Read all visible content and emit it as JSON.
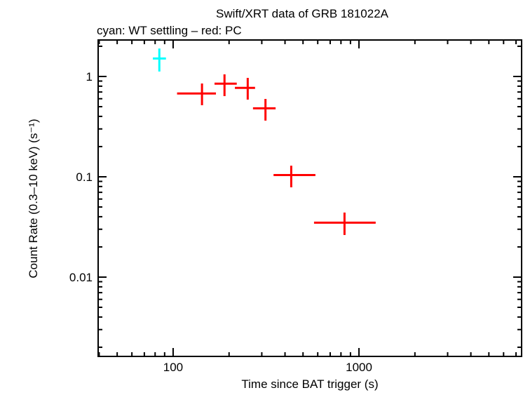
{
  "chart_data": {
    "type": "scatter",
    "title": "Swift/XRT data of GRB 181022A",
    "subtitle": "cyan: WT settling – red: PC",
    "xlabel": "Time since BAT trigger (s)",
    "ylabel": "Count Rate (0.3–10 keV) (s⁻¹)",
    "xscale": "log",
    "yscale": "log",
    "xlim": [
      39.5,
      7500
    ],
    "ylim": [
      0.00162,
      2.31
    ],
    "x_ticks": [
      {
        "value": 100,
        "label": "100"
      },
      {
        "value": 1000,
        "label": "1000"
      }
    ],
    "y_ticks": [
      {
        "value": 1,
        "label": "1"
      },
      {
        "value": 0.1,
        "label": "0.1"
      },
      {
        "value": 0.01,
        "label": "0.01"
      }
    ],
    "grid": false,
    "series": [
      {
        "color": "#00ffff",
        "points": [
          {
            "x": 84.3,
            "xlo": 77.8,
            "xhi": 91.5,
            "y": 1.51,
            "ylo": 1.12,
            "yhi": 1.9
          }
        ]
      },
      {
        "color": "#ff0000",
        "points": [
          {
            "x": 143,
            "xlo": 105,
            "xhi": 170,
            "y": 0.676,
            "ylo": 0.517,
            "yhi": 0.851
          },
          {
            "x": 189,
            "xlo": 167,
            "xhi": 220,
            "y": 0.847,
            "ylo": 0.637,
            "yhi": 1.05
          },
          {
            "x": 252,
            "xlo": 215,
            "xhi": 276,
            "y": 0.769,
            "ylo": 0.588,
            "yhi": 0.968
          },
          {
            "x": 314,
            "xlo": 269,
            "xhi": 356,
            "y": 0.482,
            "ylo": 0.363,
            "yhi": 0.597
          },
          {
            "x": 432,
            "xlo": 347,
            "xhi": 583,
            "y": 0.104,
            "ylo": 0.0785,
            "yhi": 0.129
          },
          {
            "x": 836,
            "xlo": 573,
            "xhi": 1230,
            "y": 0.0349,
            "ylo": 0.0263,
            "yhi": 0.044
          }
        ]
      }
    ]
  }
}
